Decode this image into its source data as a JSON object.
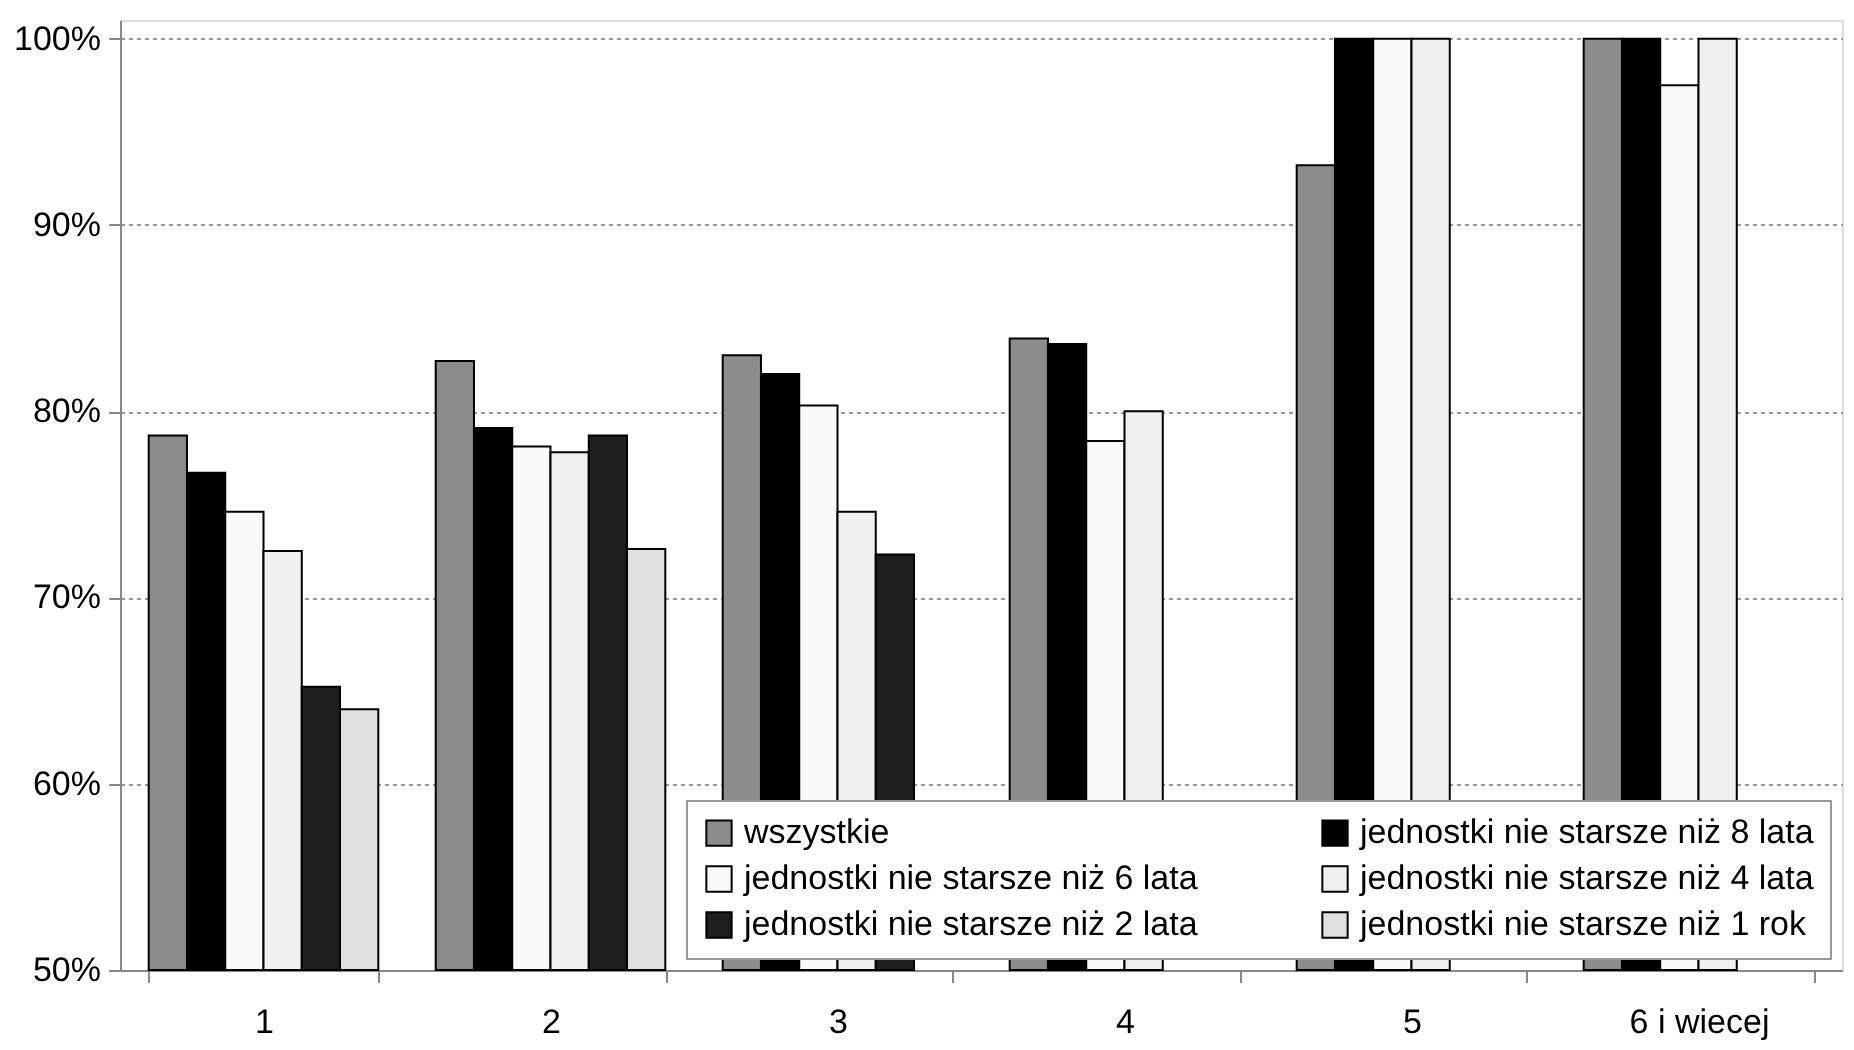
{
  "chart_data": {
    "type": "bar",
    "categories": [
      "1",
      "2",
      "3",
      "4",
      "5",
      "6 i wiecej"
    ],
    "series": [
      {
        "name": "wszystkie",
        "color": "#8c8c8c",
        "values": [
          78.7,
          82.7,
          83.0,
          83.9,
          93.2,
          100
        ]
      },
      {
        "name": "jednostki nie starsze niż 8 lata",
        "color": "#000000",
        "values": [
          76.7,
          79.1,
          82.0,
          83.6,
          100,
          100
        ]
      },
      {
        "name": "jednostki nie starsze niż 6 lata",
        "color": "#fafafa",
        "values": [
          74.6,
          78.1,
          80.3,
          78.4,
          100,
          97.5
        ]
      },
      {
        "name": "jednostki nie starsze niż 4 lata",
        "color": "#f0f0f0",
        "values": [
          72.5,
          77.8,
          74.6,
          80.0,
          100,
          100
        ]
      },
      {
        "name": "jednostki nie starsze niż 2 lata",
        "color": "#1e1e1e",
        "values": [
          65.2,
          78.7,
          72.3,
          null,
          null,
          null
        ]
      },
      {
        "name": "jednostki nie starsze niż 1 rok",
        "color": "#e0e0e0",
        "values": [
          64.0,
          72.6,
          null,
          null,
          null,
          null
        ]
      }
    ],
    "ylim": [
      50,
      101
    ],
    "yticks": [
      {
        "value": 50,
        "label": "50%"
      },
      {
        "value": 60,
        "label": "60%"
      },
      {
        "value": 70,
        "label": "70%"
      },
      {
        "value": 80,
        "label": "80%"
      },
      {
        "value": 90,
        "label": "90%"
      },
      {
        "value": 100,
        "label": "100%"
      }
    ],
    "grid": "y",
    "legend": "bottom"
  }
}
